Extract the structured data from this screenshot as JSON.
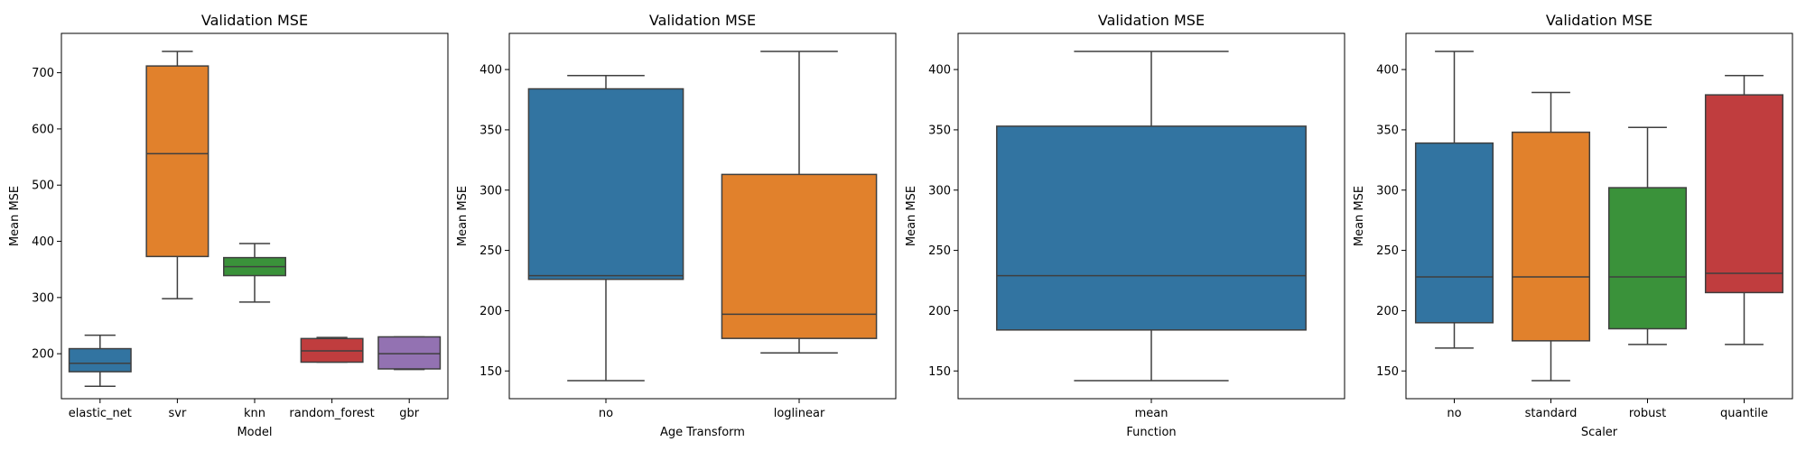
{
  "chart_data": [
    {
      "type": "box",
      "title": "Validation MSE",
      "xlabel": "Model",
      "ylabel": "Mean MSE",
      "ylim": [
        120,
        770
      ],
      "yticks": [
        200,
        300,
        400,
        500,
        600,
        700
      ],
      "categories": [
        "elastic_net",
        "svr",
        "knn",
        "random_forest",
        "gbr"
      ],
      "boxes": [
        {
          "whisker_low": 142,
          "q1": 168,
          "median": 183,
          "q3": 209,
          "whisker_high": 233,
          "color": "#3274a1"
        },
        {
          "whisker_low": 298,
          "q1": 373,
          "median": 556,
          "q3": 712,
          "whisker_high": 738,
          "color": "#e1812c"
        },
        {
          "whisker_low": 292,
          "q1": 339,
          "median": 355,
          "q3": 371,
          "whisker_high": 396,
          "color": "#3a923a"
        },
        {
          "whisker_low": 185,
          "q1": 185,
          "median": 205,
          "q3": 227,
          "whisker_high": 229,
          "color": "#c03d3e"
        },
        {
          "whisker_low": 172,
          "q1": 173,
          "median": 200,
          "q3": 230,
          "whisker_high": 230,
          "color": "#9372b2"
        }
      ]
    },
    {
      "type": "box",
      "title": "Validation MSE",
      "xlabel": "Age Transform",
      "ylabel": "Mean MSE",
      "ylim": [
        127,
        430
      ],
      "yticks": [
        150,
        200,
        250,
        300,
        350,
        400
      ],
      "categories": [
        "no",
        "loglinear"
      ],
      "boxes": [
        {
          "whisker_low": 142,
          "q1": 226,
          "median": 229,
          "q3": 384,
          "whisker_high": 395,
          "color": "#3274a1"
        },
        {
          "whisker_low": 165,
          "q1": 177,
          "median": 197,
          "q3": 313,
          "whisker_high": 415,
          "color": "#e1812c"
        }
      ]
    },
    {
      "type": "box",
      "title": "Validation MSE",
      "xlabel": "Function",
      "ylabel": "Mean MSE",
      "ylim": [
        127,
        430
      ],
      "yticks": [
        150,
        200,
        250,
        300,
        350,
        400
      ],
      "categories": [
        "mean"
      ],
      "boxes": [
        {
          "whisker_low": 142,
          "q1": 184,
          "median": 229,
          "q3": 353,
          "whisker_high": 415,
          "color": "#3274a1"
        }
      ]
    },
    {
      "type": "box",
      "title": "Validation MSE",
      "xlabel": "Scaler",
      "ylabel": "Mean MSE",
      "ylim": [
        127,
        430
      ],
      "yticks": [
        150,
        200,
        250,
        300,
        350,
        400
      ],
      "categories": [
        "no",
        "standard",
        "robust",
        "quantile"
      ],
      "boxes": [
        {
          "whisker_low": 169,
          "q1": 190,
          "median": 228,
          "q3": 339,
          "whisker_high": 415,
          "color": "#3274a1"
        },
        {
          "whisker_low": 142,
          "q1": 175,
          "median": 228,
          "q3": 348,
          "whisker_high": 381,
          "color": "#e1812c"
        },
        {
          "whisker_low": 172,
          "q1": 185,
          "median": 228,
          "q3": 302,
          "whisker_high": 352,
          "color": "#3a923a"
        },
        {
          "whisker_low": 172,
          "q1": 215,
          "median": 231,
          "q3": 379,
          "whisker_high": 395,
          "color": "#c03d3e"
        }
      ]
    }
  ]
}
